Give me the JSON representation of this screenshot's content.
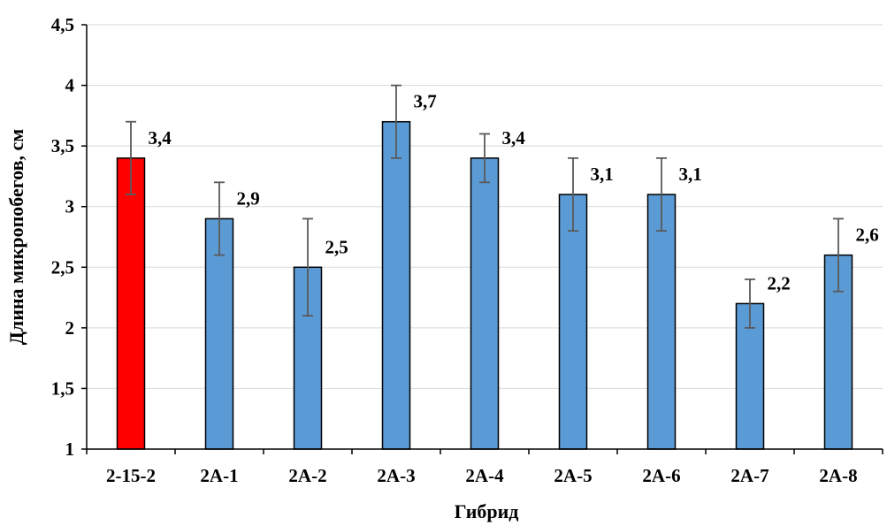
{
  "chart_data": {
    "type": "bar",
    "title": "",
    "xlabel": "Гибрид",
    "ylabel": "Длина микропобегов, см",
    "categories": [
      "2-15-2",
      "2A-1",
      "2A-2",
      "2A-3",
      "2A-4",
      "2A-5",
      "2A-6",
      "2A-7",
      "2A-8"
    ],
    "values": [
      3.4,
      2.9,
      2.5,
      3.7,
      3.4,
      3.1,
      3.1,
      2.2,
      2.6
    ],
    "value_labels": [
      "3,4",
      "2,9",
      "2,5",
      "3,7",
      "3,4",
      "3,1",
      "3,1",
      "2,2",
      "2,6"
    ],
    "error_low": [
      3.1,
      2.6,
      2.1,
      3.4,
      3.2,
      2.8,
      2.8,
      2.0,
      2.3
    ],
    "error_high": [
      3.7,
      3.2,
      2.9,
      4.0,
      3.6,
      3.4,
      3.4,
      2.4,
      2.9
    ],
    "bar_colors": [
      "#ff0000",
      "#5b9bd5",
      "#5b9bd5",
      "#5b9bd5",
      "#5b9bd5",
      "#5b9bd5",
      "#5b9bd5",
      "#5b9bd5",
      "#5b9bd5"
    ],
    "ylim": [
      1,
      4.5
    ],
    "yticks": [
      1,
      1.5,
      2,
      2.5,
      3,
      3.5,
      4,
      4.5
    ],
    "ytick_labels": [
      "1",
      "1,5",
      "2",
      "2,5",
      "3",
      "3,5",
      "4",
      "4,5"
    ],
    "grid": true,
    "legend": "none"
  }
}
